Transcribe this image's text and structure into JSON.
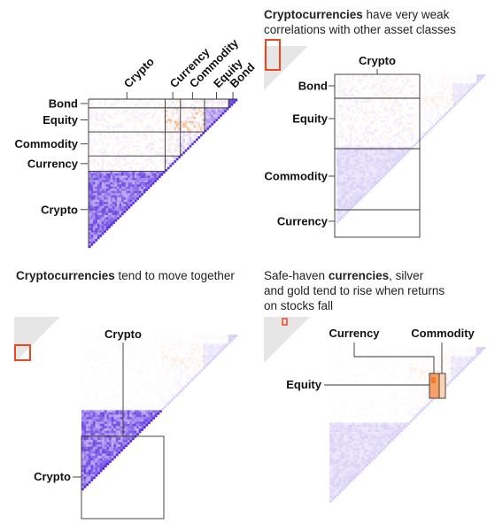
{
  "captions": {
    "p2_bold": "Cryptocurrencies",
    "p2_line1_rest": " have very weak",
    "p2_line2": "correlations with other asset classes",
    "p3_bold": "Cryptocurrencies",
    "p3_rest": " tend to move together",
    "p4_line1_pre": "Safe-haven ",
    "p4_bold": "currencies",
    "p4_line1_post": ", silver",
    "p4_line2": "and gold tend to rise when returns",
    "p4_line3": "on stocks fall"
  },
  "chart_data": [
    {
      "type": "heatmap",
      "panel": "overview",
      "column_labels": [
        "Crypto",
        "Currency",
        "Commodity",
        "Equity",
        "Bond"
      ],
      "row_labels": [
        "Bond",
        "Equity",
        "Commodity",
        "Currency",
        "Crypto"
      ],
      "colors": {
        "positive": "#5a2ee0",
        "negative": "#f28a3c",
        "neutral": "#ffffff"
      }
    },
    {
      "type": "heatmap",
      "panel": "zoom-crypto-vs-others",
      "column_labels": [
        "Crypto"
      ],
      "row_labels": [
        "Bond",
        "Equity",
        "Commodity",
        "Currency"
      ]
    },
    {
      "type": "heatmap",
      "panel": "zoom-crypto-block",
      "column_labels": [
        "Crypto"
      ],
      "row_labels": [
        "Crypto"
      ]
    },
    {
      "type": "heatmap",
      "panel": "zoom-safe-haven",
      "column_labels": [
        "Currency",
        "Commodity"
      ],
      "row_labels": [
        "Equity"
      ]
    }
  ],
  "colors": {
    "highlight": "#f0461e",
    "thumbnail": "#e6e6e6",
    "line": "#222222"
  }
}
